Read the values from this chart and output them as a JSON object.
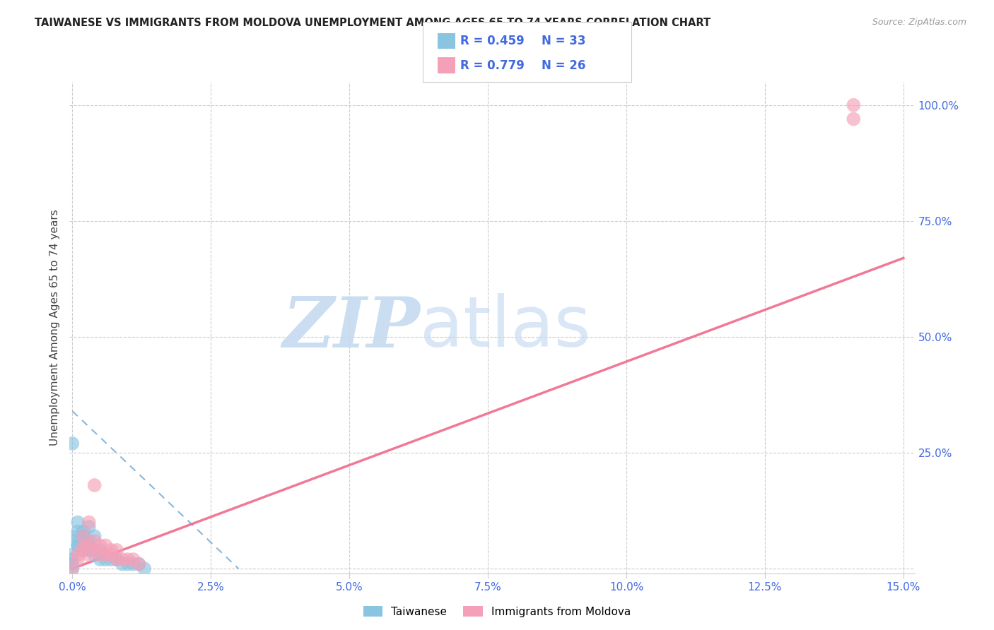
{
  "title": "TAIWANESE VS IMMIGRANTS FROM MOLDOVA UNEMPLOYMENT AMONG AGES 65 TO 74 YEARS CORRELATION CHART",
  "source": "Source: ZipAtlas.com",
  "ylabel": "Unemployment Among Ages 65 to 74 years",
  "xlim": [
    -0.0005,
    0.152
  ],
  "ylim": [
    -0.01,
    1.05
  ],
  "blue_color": "#89c4e1",
  "pink_color": "#f4a0b8",
  "blue_line_color": "#5599cc",
  "pink_line_color": "#ee6688",
  "axis_label_color": "#4169E1",
  "grid_color": "#cccccc",
  "background_color": "#ffffff",
  "legend_R1": "R = 0.459",
  "legend_N1": "N = 33",
  "legend_R2": "R = 0.779",
  "legend_N2": "N = 26",
  "taiwanese_x": [
    0.0,
    0.0,
    0.0,
    0.0,
    0.001,
    0.001,
    0.001,
    0.001,
    0.001,
    0.001,
    0.002,
    0.002,
    0.002,
    0.002,
    0.002,
    0.003,
    0.003,
    0.003,
    0.003,
    0.004,
    0.004,
    0.004,
    0.005,
    0.005,
    0.006,
    0.007,
    0.008,
    0.009,
    0.01,
    0.011,
    0.012,
    0.013,
    0.0
  ],
  "taiwanese_y": [
    0.0,
    0.01,
    0.02,
    0.03,
    0.05,
    0.05,
    0.06,
    0.07,
    0.08,
    0.1,
    0.04,
    0.05,
    0.06,
    0.07,
    0.08,
    0.04,
    0.05,
    0.06,
    0.09,
    0.03,
    0.04,
    0.07,
    0.02,
    0.04,
    0.02,
    0.02,
    0.02,
    0.01,
    0.01,
    0.01,
    0.01,
    0.0,
    0.27
  ],
  "moldova_x": [
    0.0,
    0.001,
    0.001,
    0.002,
    0.002,
    0.002,
    0.003,
    0.003,
    0.003,
    0.004,
    0.004,
    0.004,
    0.005,
    0.005,
    0.006,
    0.006,
    0.007,
    0.007,
    0.008,
    0.008,
    0.009,
    0.01,
    0.011,
    0.012,
    0.141,
    0.141
  ],
  "moldova_y": [
    0.0,
    0.02,
    0.03,
    0.04,
    0.05,
    0.07,
    0.03,
    0.05,
    0.1,
    0.04,
    0.06,
    0.18,
    0.03,
    0.05,
    0.03,
    0.05,
    0.03,
    0.04,
    0.02,
    0.04,
    0.02,
    0.02,
    0.02,
    0.01,
    1.0,
    0.97
  ],
  "blue_trend_x0": 0.0,
  "blue_trend_y0": 0.34,
  "blue_trend_x1": 0.03,
  "blue_trend_y1": 0.0,
  "pink_trend_x0": 0.0,
  "pink_trend_y0": 0.0,
  "pink_trend_x1": 0.15,
  "pink_trend_y1": 0.67,
  "xticks": [
    0.0,
    0.025,
    0.05,
    0.075,
    0.1,
    0.125,
    0.15
  ],
  "xticklabels": [
    "0.0%",
    "2.5%",
    "5.0%",
    "7.5%",
    "10.0%",
    "12.5%",
    "15.0%"
  ],
  "yticks": [
    0.0,
    0.25,
    0.5,
    0.75,
    1.0
  ],
  "yticklabels": [
    "",
    "25.0%",
    "50.0%",
    "75.0%",
    "100.0%"
  ]
}
